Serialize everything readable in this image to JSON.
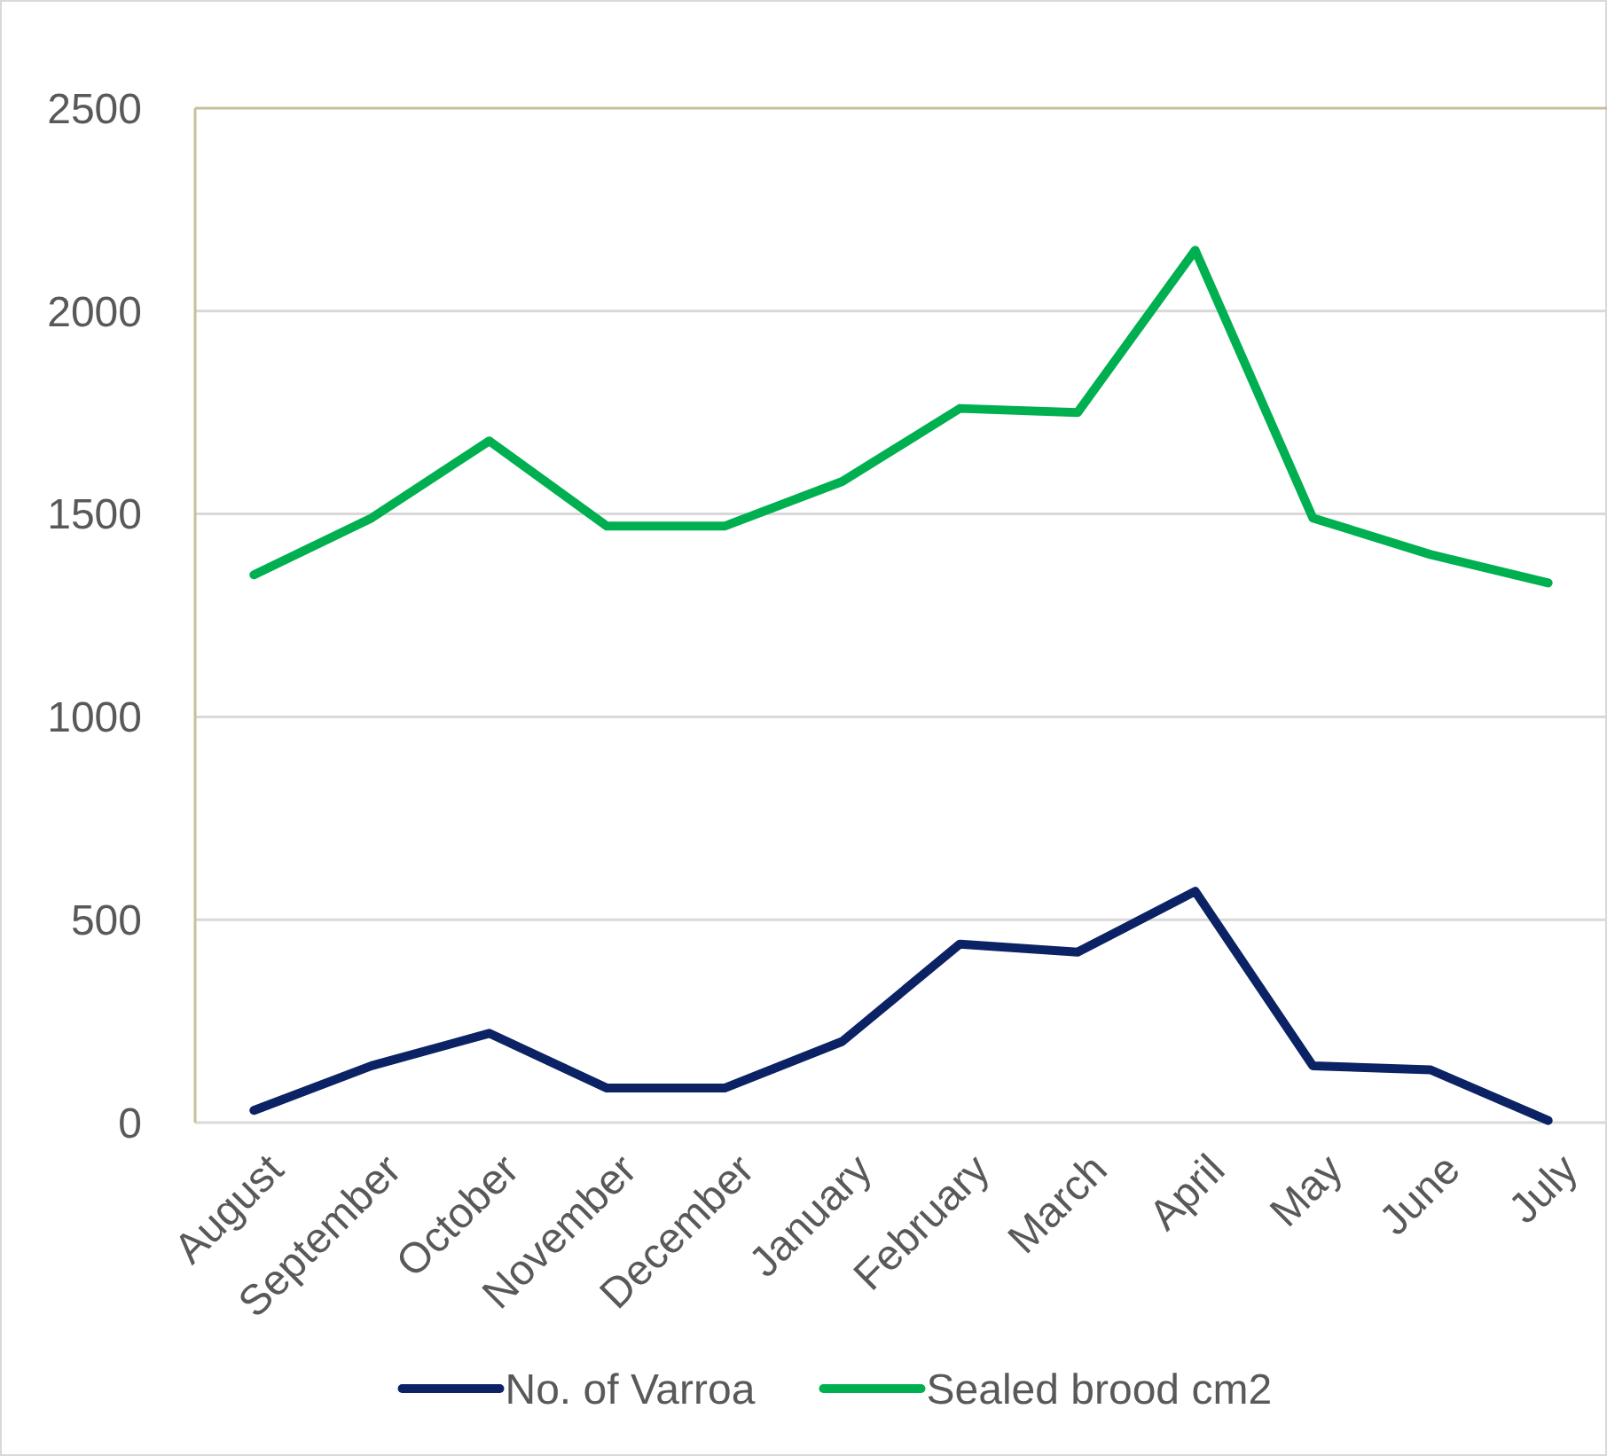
{
  "chart_data": {
    "type": "line",
    "categories": [
      "August",
      "September",
      "October",
      "November",
      "December",
      "January",
      "February",
      "March",
      "April",
      "May",
      "June",
      "July"
    ],
    "series": [
      {
        "name": "No. of Varroa",
        "color": "#0b2265",
        "values": [
          30,
          140,
          220,
          85,
          85,
          200,
          440,
          420,
          570,
          140,
          130,
          5
        ]
      },
      {
        "name": "Sealed brood cm2",
        "color": "#00b050",
        "values": [
          1350,
          1490,
          1680,
          1470,
          1470,
          1580,
          1760,
          1750,
          2150,
          1490,
          1400,
          1330
        ]
      }
    ],
    "ylim": [
      0,
      2500
    ],
    "yticks": [
      0,
      500,
      1000,
      1500,
      2000,
      2500
    ],
    "grid": "y",
    "legend": "bottom",
    "marker": "none",
    "line_style": "solid"
  }
}
